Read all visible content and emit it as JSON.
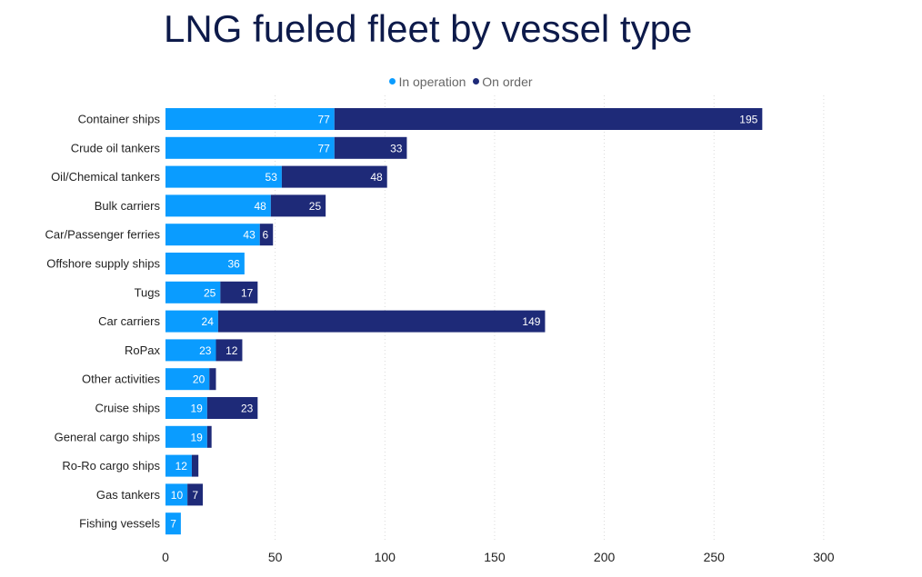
{
  "title": "LNG fueled fleet by vessel type",
  "chart_data": {
    "type": "bar",
    "orientation": "horizontal",
    "stacked": true,
    "categories": [
      "Container ships",
      "Crude oil tankers",
      "Oil/Chemical tankers",
      "Bulk carriers",
      "Car/Passenger ferries",
      "Offshore supply ships",
      "Tugs",
      "Car carriers",
      "RoPax",
      "Other activities",
      "Cruise ships",
      "General cargo ships",
      "Ro-Ro cargo ships",
      "Gas tankers",
      "Fishing vessels"
    ],
    "series": [
      {
        "name": "In operation",
        "color": "#0a9cff",
        "values": [
          77,
          77,
          53,
          48,
          43,
          36,
          25,
          24,
          23,
          20,
          19,
          19,
          12,
          10,
          7
        ],
        "labels": [
          "77",
          "77",
          "53",
          "48",
          "43",
          "36",
          "25",
          "24",
          "23",
          "20",
          "19",
          "19",
          "12",
          "10",
          "7"
        ]
      },
      {
        "name": "On order",
        "color": "#1e2a78",
        "values": [
          195,
          33,
          48,
          25,
          6,
          0,
          17,
          149,
          12,
          3,
          23,
          2,
          3,
          7,
          0
        ],
        "labels": [
          "195",
          "33",
          "48",
          "25",
          "6",
          "",
          "17",
          "149",
          "12",
          "",
          "23",
          "",
          "",
          "7",
          ""
        ]
      }
    ],
    "xlim": [
      0,
      300
    ],
    "xticks": [
      "0",
      "50",
      "100",
      "150",
      "200",
      "250",
      "300"
    ],
    "grid": "vertical-dotted",
    "legend": "top-center"
  }
}
